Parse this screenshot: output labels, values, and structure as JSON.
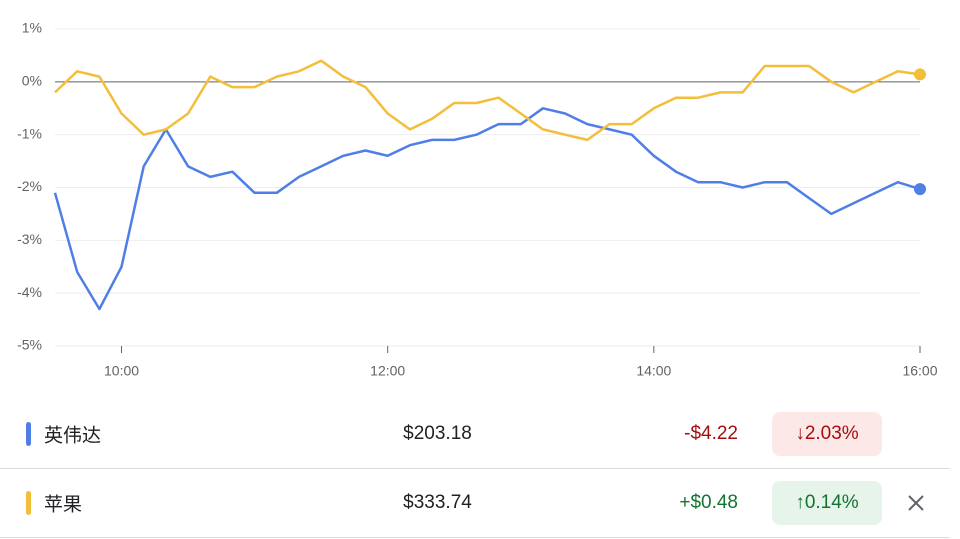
{
  "chart_data": {
    "type": "line",
    "x": [
      "09:30",
      "09:40",
      "09:50",
      "10:00",
      "10:10",
      "10:20",
      "10:30",
      "10:40",
      "10:50",
      "11:00",
      "11:10",
      "11:20",
      "11:30",
      "11:40",
      "11:50",
      "12:00",
      "12:10",
      "12:20",
      "12:30",
      "12:40",
      "12:50",
      "13:00",
      "13:10",
      "13:20",
      "13:30",
      "13:40",
      "13:50",
      "14:00",
      "14:10",
      "14:20",
      "14:30",
      "14:40",
      "14:50",
      "15:00",
      "15:10",
      "15:20",
      "15:30",
      "15:40",
      "15:50",
      "16:00"
    ],
    "series": [
      {
        "name": "英伟达",
        "color": "#4f7fe6",
        "values": [
          -2.1,
          -3.6,
          -4.3,
          -3.5,
          -1.6,
          -0.9,
          -1.6,
          -1.8,
          -1.7,
          -2.1,
          -2.1,
          -1.8,
          -1.6,
          -1.4,
          -1.3,
          -1.4,
          -1.2,
          -1.1,
          -1.1,
          -1.0,
          -0.8,
          -0.8,
          -0.5,
          -0.6,
          -0.8,
          -0.9,
          -1.0,
          -1.4,
          -1.7,
          -1.9,
          -1.9,
          -2.0,
          -1.9,
          -1.9,
          -2.2,
          -2.5,
          -2.3,
          -2.1,
          -1.9,
          -2.03
        ]
      },
      {
        "name": "苹果",
        "color": "#f3be3a",
        "values": [
          -0.2,
          0.2,
          0.1,
          -0.6,
          -1.0,
          -0.9,
          -0.6,
          0.1,
          -0.1,
          -0.1,
          0.1,
          0.2,
          0.4,
          0.1,
          -0.1,
          -0.6,
          -0.9,
          -0.7,
          -0.4,
          -0.4,
          -0.3,
          -0.6,
          -0.9,
          -1.0,
          -1.1,
          -0.8,
          -0.8,
          -0.5,
          -0.3,
          -0.3,
          -0.2,
          -0.2,
          0.3,
          0.3,
          0.3,
          0.0,
          -0.2,
          0.0,
          0.2,
          0.14
        ]
      }
    ],
    "xlim": [
      "09:30",
      "16:00"
    ],
    "xticks": [
      "10:00",
      "12:00",
      "14:00",
      "16:00"
    ],
    "ylim": [
      -5,
      1
    ],
    "yticks": [
      {
        "value": 1,
        "label": "1%"
      },
      {
        "value": 0,
        "label": "0%"
      },
      {
        "value": -1,
        "label": "-1%"
      },
      {
        "value": -2,
        "label": "-2%"
      },
      {
        "value": -3,
        "label": "-3%"
      },
      {
        "value": -4,
        "label": "-4%"
      },
      {
        "value": -5,
        "label": "-5%"
      }
    ],
    "grid": true
  },
  "table": {
    "rows": [
      {
        "name": "英伟达",
        "color": "#4f7fe6",
        "price": "$203.18",
        "change": "-$4.22",
        "change_percent": "↓2.03%",
        "change_color": "#a50e0e",
        "badge_color": "#fce8e6"
      },
      {
        "name": "苹果",
        "color": "#f3be3a",
        "price": "$333.74",
        "change": "+$0.48",
        "change_percent": "↑0.14%",
        "change_color": "#137333",
        "badge_color": "#e6f4ea"
      }
    ]
  }
}
